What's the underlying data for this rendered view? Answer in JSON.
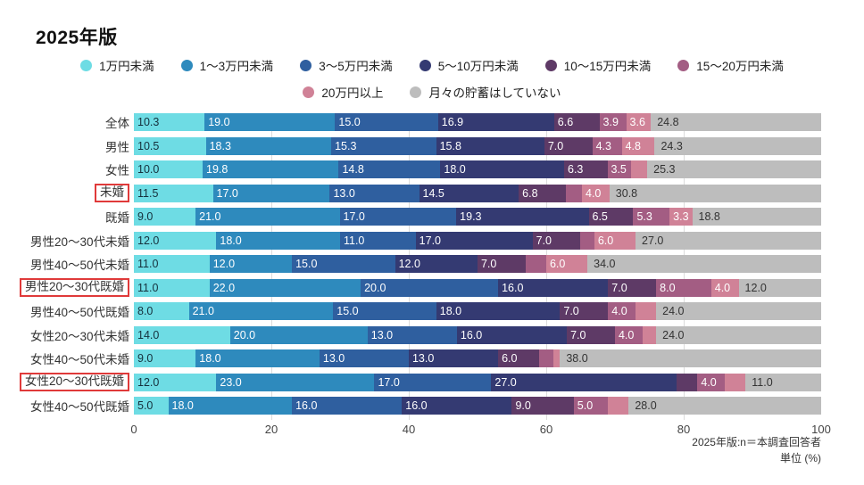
{
  "title": "2025年版",
  "footnote": {
    "line1": "2025年版:n＝本調査回答者",
    "line2": "単位 (%)"
  },
  "chart_data": {
    "type": "bar",
    "stacked": true,
    "orientation": "horizontal",
    "unit": "%",
    "xlim": [
      0,
      100
    ],
    "x_ticks": [
      "0",
      "20",
      "40",
      "60",
      "80",
      "100"
    ],
    "grid": "vertical-light",
    "legend_position": "top-center",
    "highlight_box_color": "#e03a3a",
    "series": [
      {
        "name": "1万円未満",
        "color": "#6edce4"
      },
      {
        "name": "1〜3万円未満",
        "color": "#2e8abd"
      },
      {
        "name": "3〜5万円未満",
        "color": "#2f5f9f"
      },
      {
        "name": "5〜10万円未満",
        "color": "#343a72"
      },
      {
        "name": "10〜15万円未満",
        "color": "#5e3a66"
      },
      {
        "name": "15〜20万円未満",
        "color": "#a35d83"
      },
      {
        "name": "20万円以上",
        "color": "#d08297"
      },
      {
        "name": "月々の貯蓄はしていない",
        "color": "#bdbdbd"
      }
    ],
    "legend_rows": [
      [
        0,
        1,
        2,
        3,
        4,
        5
      ],
      [
        6,
        7
      ]
    ],
    "rows": [
      {
        "category": "全体",
        "highlighted": false,
        "values": [
          10.3,
          19.0,
          15.0,
          16.9,
          6.6,
          3.9,
          3.6,
          24.8
        ],
        "labels": [
          "10.3",
          "19.0",
          "15.0",
          "16.9",
          "6.6",
          "3.9",
          "3.6",
          "24.8"
        ]
      },
      {
        "category": "男性",
        "highlighted": false,
        "values": [
          10.5,
          18.3,
          15.3,
          15.8,
          7.0,
          4.3,
          4.8,
          24.3
        ],
        "labels": [
          "10.5",
          "18.3",
          "15.3",
          "15.8",
          "7.0",
          "4.3",
          "4.8",
          "24.3"
        ]
      },
      {
        "category": "女性",
        "highlighted": false,
        "values": [
          10.0,
          19.8,
          14.8,
          18.0,
          6.3,
          3.5,
          2.3,
          25.3
        ],
        "labels": [
          "10.0",
          "19.8",
          "14.8",
          "18.0",
          "6.3",
          "3.5",
          "",
          "25.3"
        ]
      },
      {
        "category": "未婚",
        "highlighted": true,
        "values": [
          11.5,
          17.0,
          13.0,
          14.5,
          6.8,
          2.4,
          4.0,
          30.8
        ],
        "labels": [
          "11.5",
          "17.0",
          "13.0",
          "14.5",
          "6.8",
          "",
          "4.0",
          "30.8"
        ]
      },
      {
        "category": "既婚",
        "highlighted": false,
        "values": [
          9.0,
          21.0,
          17.0,
          19.3,
          6.5,
          5.3,
          3.3,
          18.8
        ],
        "labels": [
          "9.0",
          "21.0",
          "17.0",
          "19.3",
          "6.5",
          "5.3",
          "3.3",
          "18.8"
        ]
      },
      {
        "category": "男性20〜30代未婚",
        "highlighted": false,
        "values": [
          12.0,
          18.0,
          11.0,
          17.0,
          7.0,
          2.0,
          6.0,
          27.0
        ],
        "labels": [
          "12.0",
          "18.0",
          "11.0",
          "17.0",
          "7.0",
          "",
          "6.0",
          "27.0"
        ]
      },
      {
        "category": "男性40〜50代未婚",
        "highlighted": false,
        "values": [
          11.0,
          12.0,
          15.0,
          12.0,
          7.0,
          3.0,
          6.0,
          34.0
        ],
        "labels": [
          "11.0",
          "12.0",
          "15.0",
          "12.0",
          "7.0",
          "",
          "6.0",
          "34.0"
        ]
      },
      {
        "category": "男性20〜30代既婚",
        "highlighted": true,
        "values": [
          11.0,
          22.0,
          20.0,
          16.0,
          7.0,
          8.0,
          4.0,
          12.0
        ],
        "labels": [
          "11.0",
          "22.0",
          "20.0",
          "16.0",
          "7.0",
          "8.0",
          "4.0",
          "12.0"
        ]
      },
      {
        "category": "男性40〜50代既婚",
        "highlighted": false,
        "values": [
          8.0,
          21.0,
          15.0,
          18.0,
          7.0,
          4.0,
          3.0,
          24.0
        ],
        "labels": [
          "8.0",
          "21.0",
          "15.0",
          "18.0",
          "7.0",
          "4.0",
          "",
          "24.0"
        ]
      },
      {
        "category": "女性20〜30代未婚",
        "highlighted": false,
        "values": [
          14.0,
          20.0,
          13.0,
          16.0,
          7.0,
          4.0,
          2.0,
          24.0
        ],
        "labels": [
          "14.0",
          "20.0",
          "13.0",
          "16.0",
          "7.0",
          "4.0",
          "",
          "24.0"
        ]
      },
      {
        "category": "女性40〜50代未婚",
        "highlighted": false,
        "values": [
          9.0,
          18.0,
          13.0,
          13.0,
          6.0,
          2.0,
          1.0,
          38.0
        ],
        "labels": [
          "9.0",
          "18.0",
          "13.0",
          "13.0",
          "6.0",
          "",
          "",
          "38.0"
        ]
      },
      {
        "category": "女性20〜30代既婚",
        "highlighted": true,
        "values": [
          12.0,
          23.0,
          17.0,
          27.0,
          3.0,
          4.0,
          3.0,
          11.0
        ],
        "labels": [
          "12.0",
          "23.0",
          "17.0",
          "27.0",
          "",
          "4.0",
          "",
          "11.0"
        ]
      },
      {
        "category": "女性40〜50代既婚",
        "highlighted": false,
        "values": [
          5.0,
          18.0,
          16.0,
          16.0,
          9.0,
          5.0,
          3.0,
          28.0
        ],
        "labels": [
          "5.0",
          "18.0",
          "16.0",
          "16.0",
          "9.0",
          "5.0",
          "",
          "28.0"
        ]
      }
    ]
  }
}
